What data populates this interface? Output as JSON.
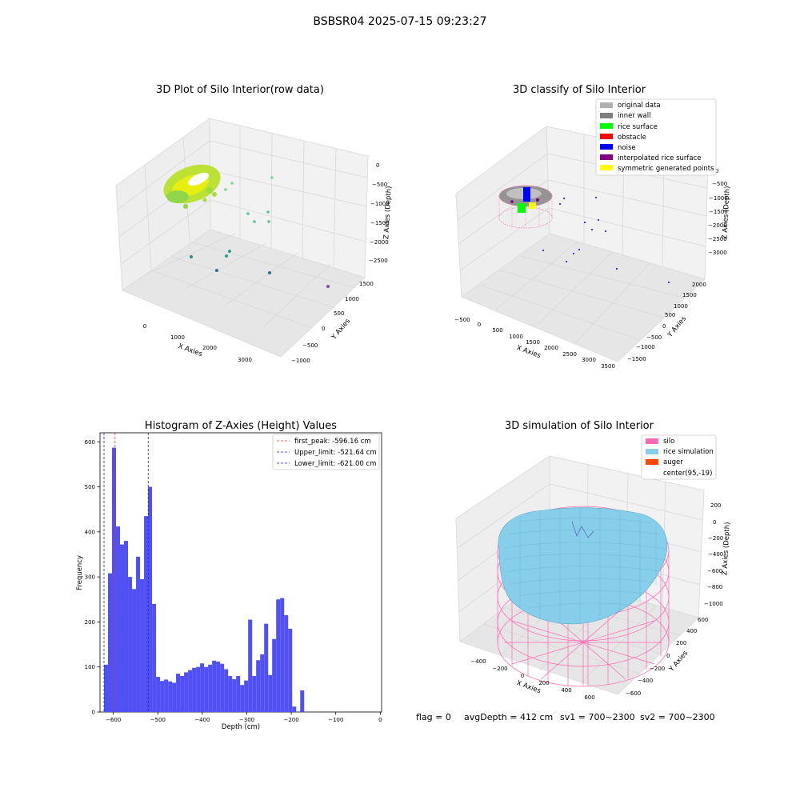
{
  "figure": {
    "suptitle": "BSBSR04 2025-07-15 09:23:27",
    "footer": {
      "flag": "flag = 0",
      "avg_depth": "avgDepth = 412 cm",
      "sv1": "sv1 = 700~2300",
      "sv2": "sv2 = 700~2300"
    }
  },
  "colors": {
    "histogram_bar": "#5050f5",
    "first_peak_line": "#e03030",
    "limit_lines": "#2020c0",
    "silo_wire": "#ff69b4",
    "rice_simulation": "#87ceeb",
    "auger": "#ff4500",
    "rice_surface": "#00ff00",
    "obstacle": "#ff0000",
    "noise": "#0000ff",
    "interpolated": "#800080",
    "symmetric": "#ffff00",
    "original": "#b0b0b0",
    "inner_wall": "#808080"
  },
  "panel1": {
    "title": "3D Plot of Silo Interior(row data)",
    "xlabel": "X Axies",
    "ylabel": "Y Axies",
    "zlabel": "Z Axies (Depth)",
    "xticks": [
      "0",
      "1000",
      "2000",
      "3000"
    ],
    "yticks": [
      "−1000",
      "−500",
      "0",
      "500",
      "1000",
      "1500"
    ],
    "zticks": [
      "0",
      "−500",
      "−1000",
      "−1500",
      "−2000",
      "−2500"
    ]
  },
  "panel2": {
    "title": "3D classify of Silo Interior",
    "xlabel": "X Axies",
    "ylabel": "Y Axies",
    "zlabel": "Z Axies (Depth)",
    "xticks": [
      "−500",
      "0",
      "500",
      "1000",
      "1500",
      "2000",
      "2500",
      "3000",
      "3500"
    ],
    "yticks": [
      "−1500",
      "−1000",
      "−500",
      "0",
      "500",
      "1000",
      "1500",
      "2000"
    ],
    "zticks": [
      "0",
      "−500",
      "−1000",
      "−1500",
      "−2000",
      "−2500",
      "−3000"
    ],
    "legend": [
      "original data",
      "inner wall",
      "rice surface",
      "obstacle",
      "noise",
      "interpolated rice surface",
      "symmetric generated points"
    ]
  },
  "panel4": {
    "title": "3D simulation of Silo Interior",
    "xlabel": "X Axies",
    "ylabel": "Y Axies",
    "zlabel": "Z Axies (Depth)",
    "xticks": [
      "−400",
      "−200",
      "0",
      "200",
      "400",
      "600"
    ],
    "yticks": [
      "−600",
      "−400",
      "−200",
      "0",
      "200",
      "400",
      "600"
    ],
    "zticks": [
      "200",
      "0",
      "−200",
      "−400",
      "−600",
      "−800",
      "−1000"
    ],
    "legend": [
      "silo",
      "rice simulation",
      "auger",
      "center(95,-19)"
    ]
  },
  "chart_data": [
    {
      "type": "bar",
      "title": "Histogram of Z-Axies (Height) Values",
      "xlabel": "Depth (cm)",
      "ylabel": "Frequency",
      "xlim": [
        -630,
        3
      ],
      "ylim": [
        0,
        620
      ],
      "xticks": [
        -600,
        -500,
        -400,
        -300,
        -200,
        -100,
        0
      ],
      "yticks": [
        0,
        100,
        200,
        300,
        400,
        500,
        600
      ],
      "bin_start": -621.0,
      "bin_width": 9.0,
      "values": [
        105,
        308,
        587,
        412,
        372,
        380,
        300,
        273,
        345,
        295,
        435,
        500,
        240,
        78,
        69,
        72,
        68,
        65,
        85,
        80,
        88,
        93,
        98,
        100,
        108,
        100,
        105,
        114,
        112,
        107,
        95,
        80,
        73,
        80,
        60,
        70,
        205,
        80,
        115,
        128,
        196,
        82,
        162,
        250,
        253,
        215,
        185,
        12,
        0,
        48
      ],
      "vlines": [
        {
          "label": "first_peak: -596.16 cm",
          "x": -596.16,
          "color": "#e03030"
        },
        {
          "label": "Upper_limit: -521.64 cm",
          "x": -521.64,
          "color": "#2020c0"
        },
        {
          "label": "Lower_limit: -621.00 cm",
          "x": -621.0,
          "color": "#2020c0"
        }
      ],
      "legend_position": "top-right"
    }
  ]
}
